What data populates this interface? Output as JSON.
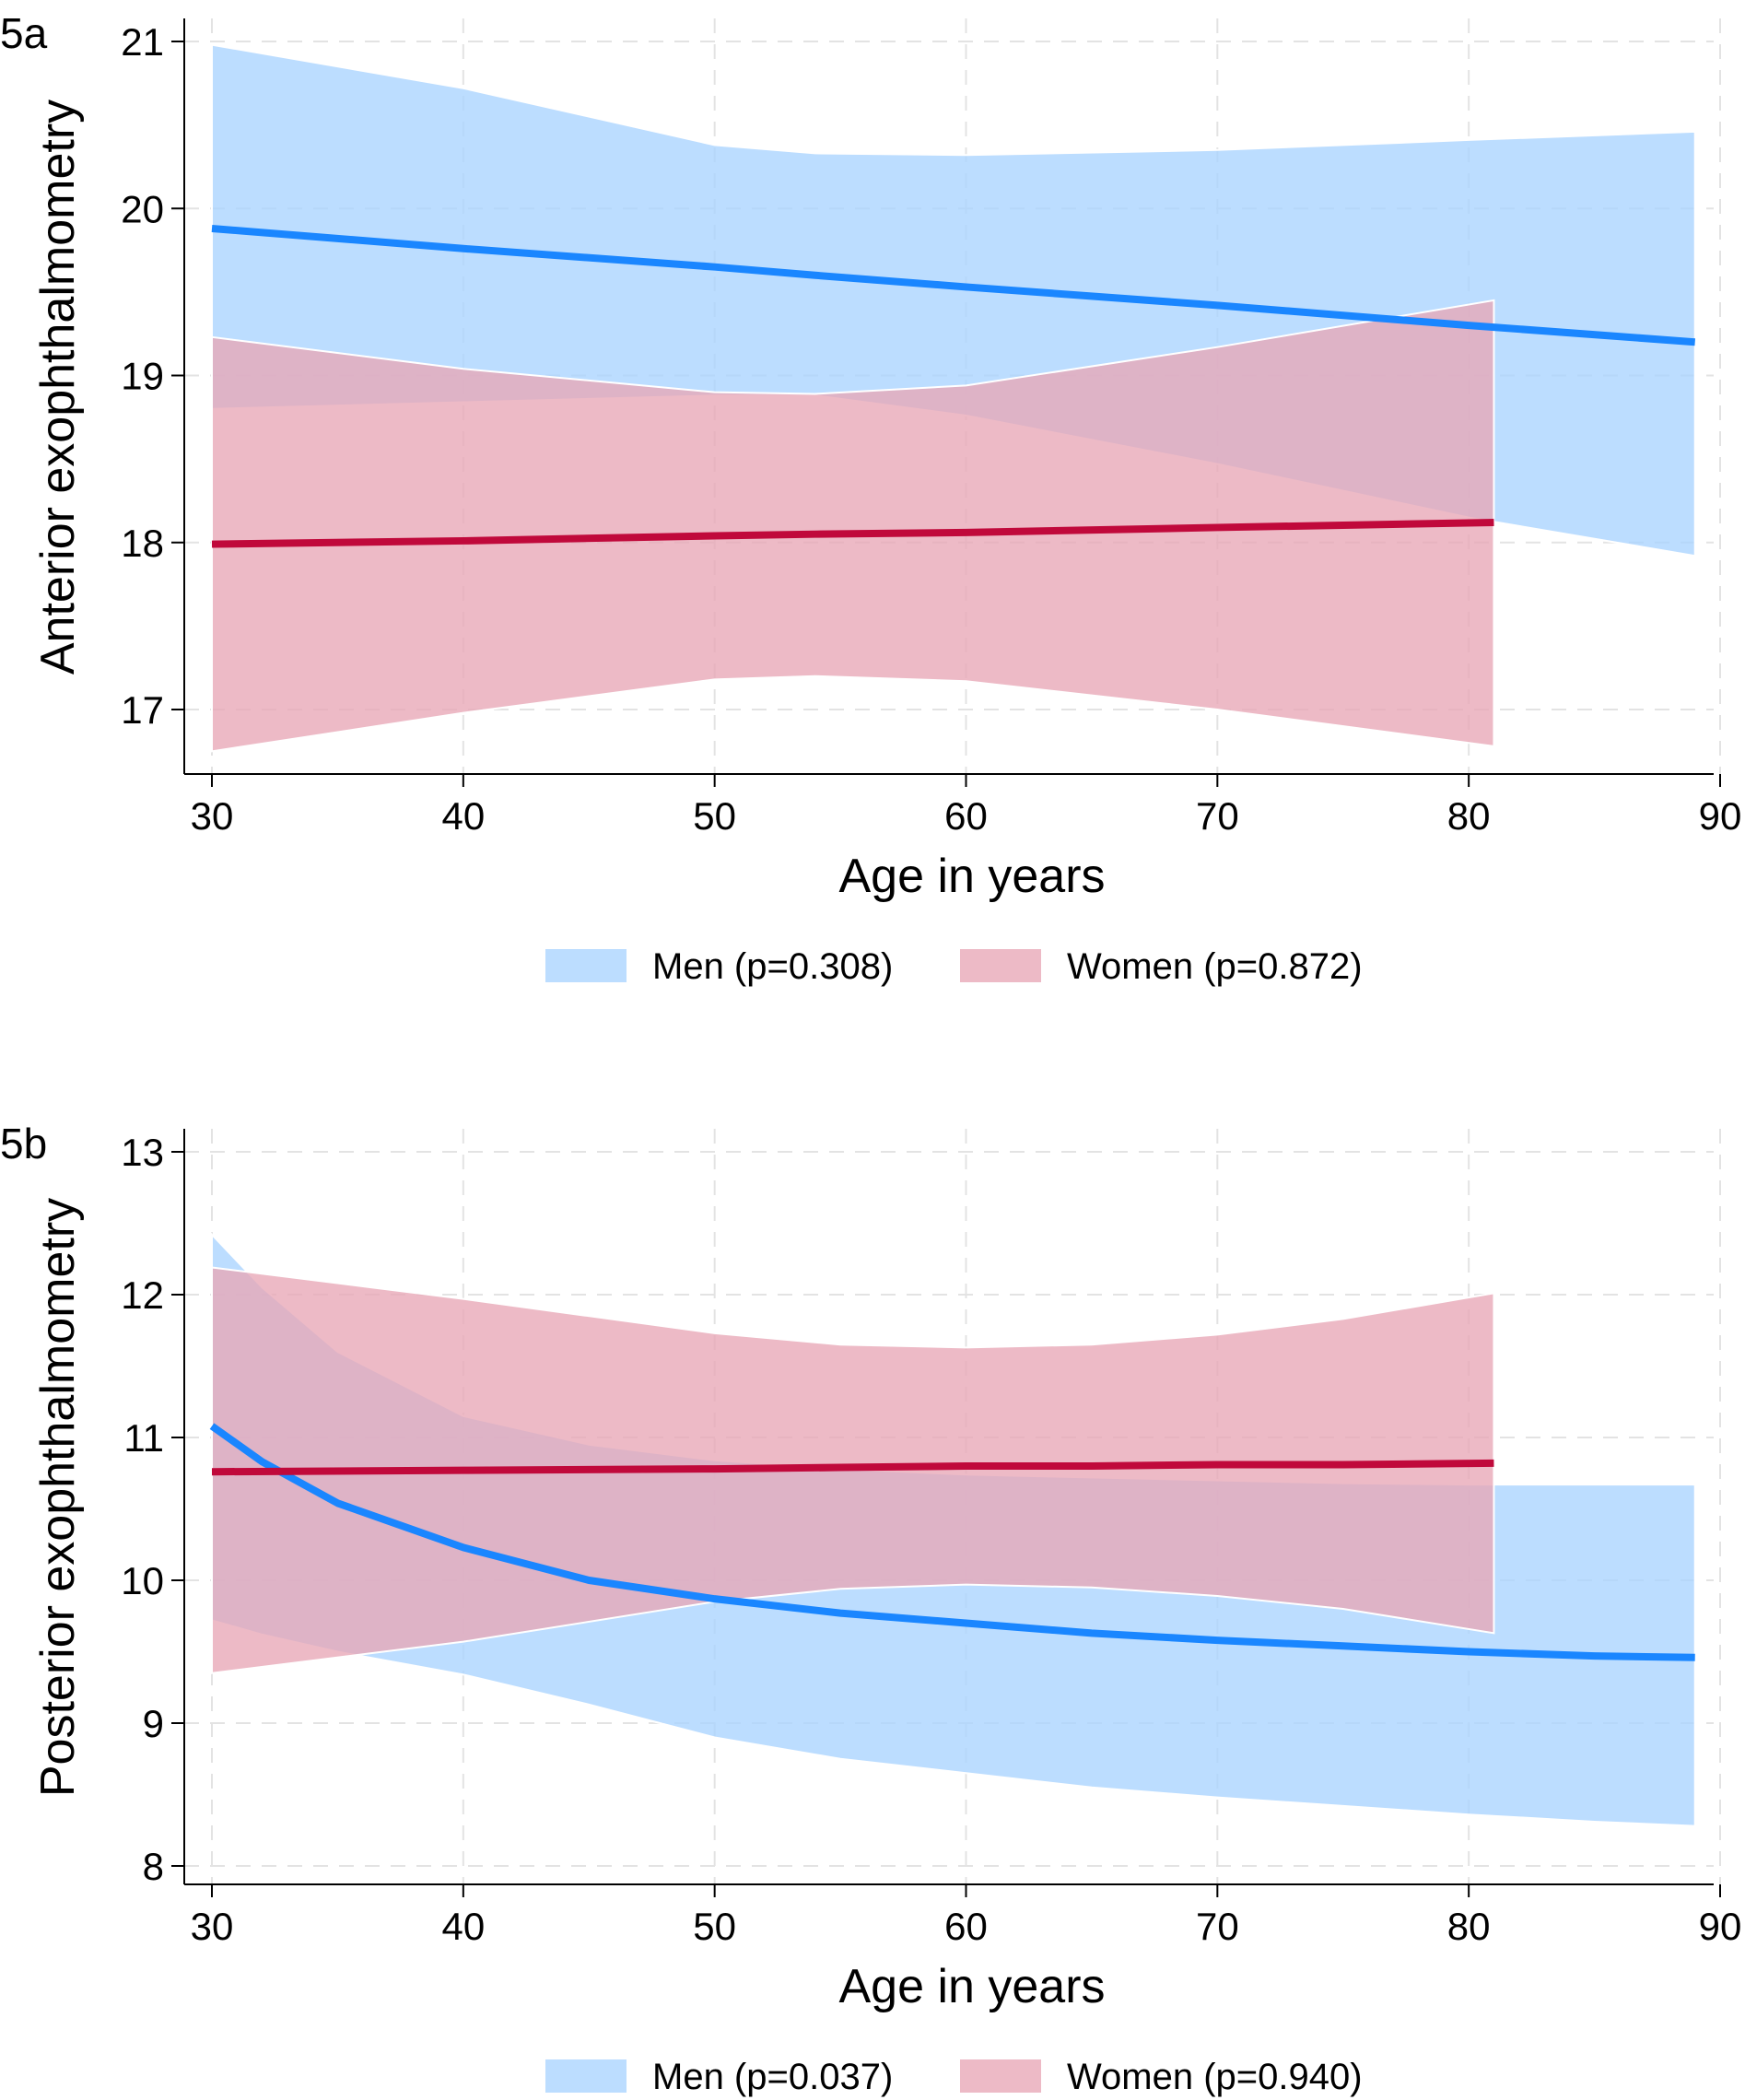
{
  "chart_data": [
    {
      "panel": "5a",
      "type": "line",
      "xlabel": "Age in years",
      "ylabel": "Anterior exophthalmometry",
      "xlim": [
        30,
        90
      ],
      "ylim": [
        16.6,
        21.1
      ],
      "xticks": [
        30,
        40,
        50,
        60,
        70,
        80,
        90
      ],
      "yticks": [
        17,
        18,
        19,
        20,
        21
      ],
      "series": [
        {
          "name": "Men",
          "legend": "Men (p=0.308)",
          "color": "#1a86ff",
          "band_color": "#a9d3ff",
          "x": [
            30,
            40,
            50,
            54,
            60,
            70,
            80,
            89
          ],
          "fit": [
            19.88,
            19.76,
            19.65,
            19.6,
            19.53,
            19.42,
            19.3,
            19.2
          ],
          "upper": [
            20.98,
            20.72,
            20.38,
            20.33,
            20.32,
            20.35,
            20.41,
            20.46
          ],
          "lower": [
            18.8,
            18.84,
            18.88,
            18.88,
            18.76,
            18.47,
            18.15,
            17.92
          ]
        },
        {
          "name": "Women",
          "legend": "Women (p=0.872)",
          "color": "#c0093b",
          "band_color": "#e8a7b6",
          "x": [
            30,
            40,
            50,
            54,
            60,
            70,
            81
          ],
          "fit": [
            17.99,
            18.01,
            18.04,
            18.05,
            18.06,
            18.09,
            18.12
          ],
          "upper": [
            19.23,
            19.04,
            18.9,
            18.89,
            18.94,
            19.17,
            19.45
          ],
          "lower": [
            16.75,
            16.98,
            17.18,
            17.2,
            17.17,
            17.0,
            16.78
          ]
        }
      ]
    },
    {
      "panel": "5b",
      "type": "line",
      "xlabel": "Age in years",
      "ylabel": "Posterior exophthalmometry",
      "xlim": [
        30,
        90
      ],
      "ylim": [
        7.9,
        13.1
      ],
      "xticks": [
        30,
        40,
        50,
        60,
        70,
        80,
        90
      ],
      "yticks": [
        8,
        9,
        10,
        11,
        12,
        13
      ],
      "series": [
        {
          "name": "Men",
          "legend": "Men (p=0.037)",
          "color": "#1a86ff",
          "band_color": "#a9d3ff",
          "x": [
            30,
            32,
            35,
            40,
            45,
            50,
            55,
            60,
            65,
            70,
            75,
            80,
            85,
            89
          ],
          "fit": [
            11.08,
            10.83,
            10.54,
            10.23,
            10.0,
            9.87,
            9.77,
            9.7,
            9.63,
            9.58,
            9.54,
            9.5,
            9.47,
            9.46
          ],
          "upper": [
            12.42,
            12.05,
            11.6,
            11.15,
            10.95,
            10.84,
            10.78,
            10.74,
            10.72,
            10.7,
            10.68,
            10.67,
            10.67,
            10.67
          ],
          "lower": [
            9.72,
            9.62,
            9.5,
            9.34,
            9.13,
            8.9,
            8.75,
            8.65,
            8.55,
            8.48,
            8.42,
            8.36,
            8.31,
            8.28
          ]
        },
        {
          "name": "Women",
          "legend": "Women (p=0.940)",
          "color": "#c0093b",
          "band_color": "#e8a7b6",
          "x": [
            30,
            40,
            50,
            55,
            60,
            65,
            70,
            75,
            81
          ],
          "fit": [
            10.76,
            10.77,
            10.78,
            10.79,
            10.8,
            10.8,
            10.81,
            10.81,
            10.82
          ],
          "upper": [
            12.19,
            11.97,
            11.73,
            11.65,
            11.63,
            11.65,
            11.72,
            11.83,
            12.01
          ],
          "lower": [
            9.35,
            9.57,
            9.85,
            9.94,
            9.97,
            9.95,
            9.89,
            9.8,
            9.63
          ]
        }
      ]
    }
  ]
}
